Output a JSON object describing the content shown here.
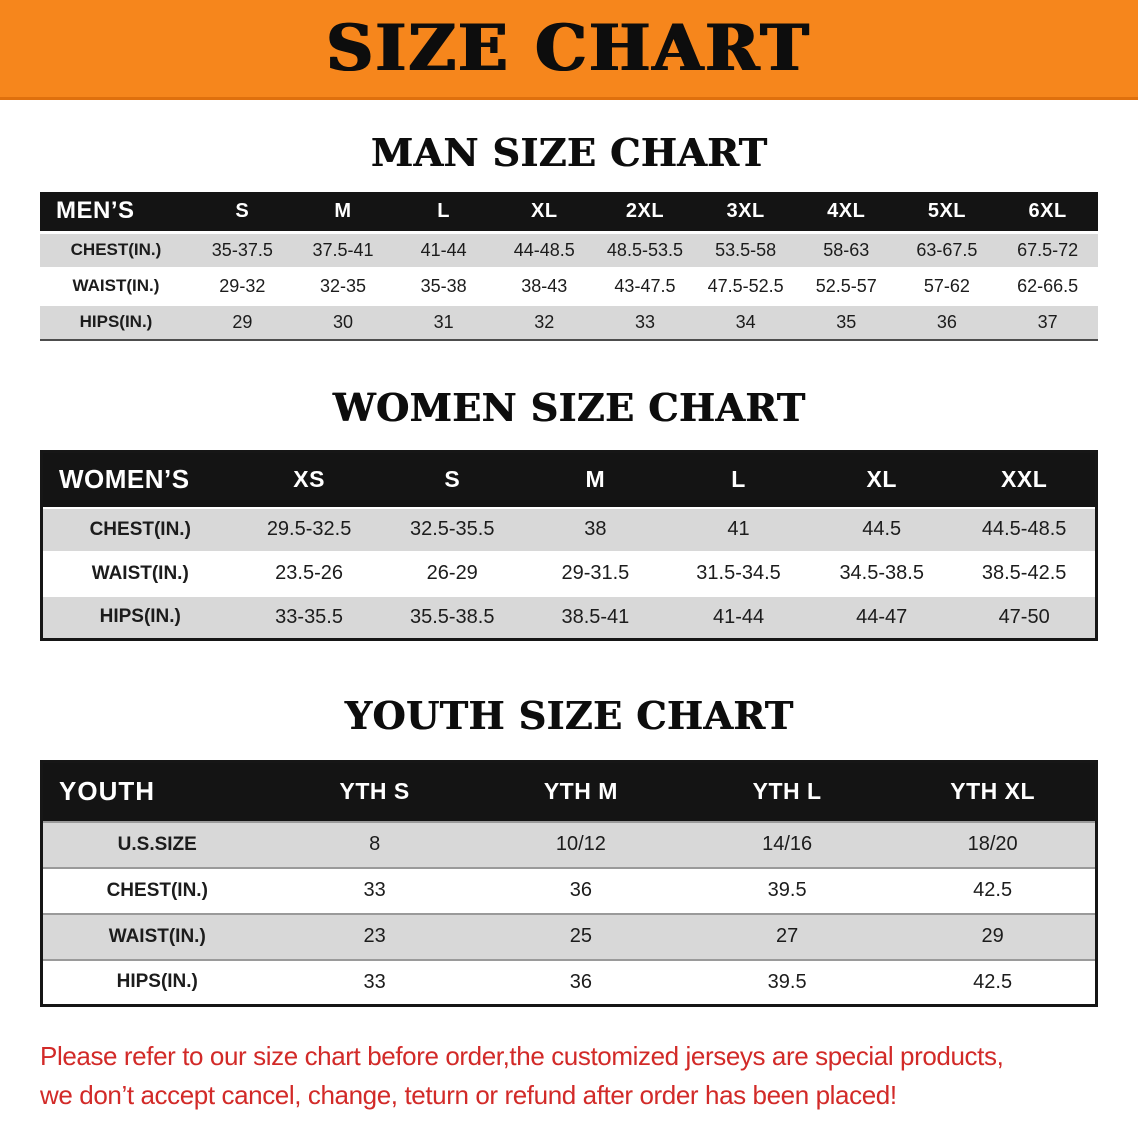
{
  "banner": {
    "title": "SIZE CHART"
  },
  "sections": [
    {
      "id": "men",
      "heading": "MAN SIZE CHART",
      "header": [
        "MEN’S",
        "S",
        "M",
        "L",
        "XL",
        "2XL",
        "3XL",
        "4XL",
        "5XL",
        "6XL"
      ],
      "rows": [
        [
          "CHEST(IN.)",
          "35-37.5",
          "37.5-41",
          "41-44",
          "44-48.5",
          "48.5-53.5",
          "53.5-58",
          "58-63",
          "63-67.5",
          "67.5-72"
        ],
        [
          "WAIST(IN.)",
          "29-32",
          "32-35",
          "35-38",
          "38-43",
          "43-47.5",
          "47.5-52.5",
          "52.5-57",
          "57-62",
          "62-66.5"
        ],
        [
          "HIPS(IN.)",
          "29",
          "30",
          "31",
          "32",
          "33",
          "34",
          "35",
          "36",
          "37"
        ]
      ]
    },
    {
      "id": "women",
      "heading": "WOMEN SIZE CHART",
      "header": [
        "WOMEN’S",
        "XS",
        "S",
        "M",
        "L",
        "XL",
        "XXL"
      ],
      "rows": [
        [
          "CHEST(IN.)",
          "29.5-32.5",
          "32.5-35.5",
          "38",
          "41",
          "44.5",
          "44.5-48.5"
        ],
        [
          "WAIST(IN.)",
          "23.5-26",
          "26-29",
          "29-31.5",
          "31.5-34.5",
          "34.5-38.5",
          "38.5-42.5"
        ],
        [
          "HIPS(IN.)",
          "33-35.5",
          "35.5-38.5",
          "38.5-41",
          "41-44",
          "44-47",
          "47-50"
        ]
      ]
    },
    {
      "id": "youth",
      "heading": "YOUTH SIZE CHART",
      "header": [
        "YOUTH",
        "YTH S",
        "YTH M",
        "YTH L",
        "YTH XL"
      ],
      "rows": [
        [
          "U.S.SIZE",
          "8",
          "10/12",
          "14/16",
          "18/20"
        ],
        [
          "CHEST(IN.)",
          "33",
          "36",
          "39.5",
          "42.5"
        ],
        [
          "WAIST(IN.)",
          "23",
          "25",
          "27",
          "29"
        ],
        [
          "HIPS(IN.)",
          "33",
          "36",
          "39.5",
          "42.5"
        ]
      ]
    }
  ],
  "disclaimer": {
    "lines": [
      "Please refer to our size chart before order,the customized jerseys are special products,",
      "we don’t accept cancel, change, teturn or refund after order has been placed!"
    ]
  },
  "colors": {
    "banner_bg": "#f6861c",
    "table_header_bg": "#141414",
    "row_shaded_bg": "#d8d8d8",
    "row_plain_bg": "#ffffff",
    "heading_text": "#0d0d0d",
    "disclaimer_text": "#d22a28"
  }
}
